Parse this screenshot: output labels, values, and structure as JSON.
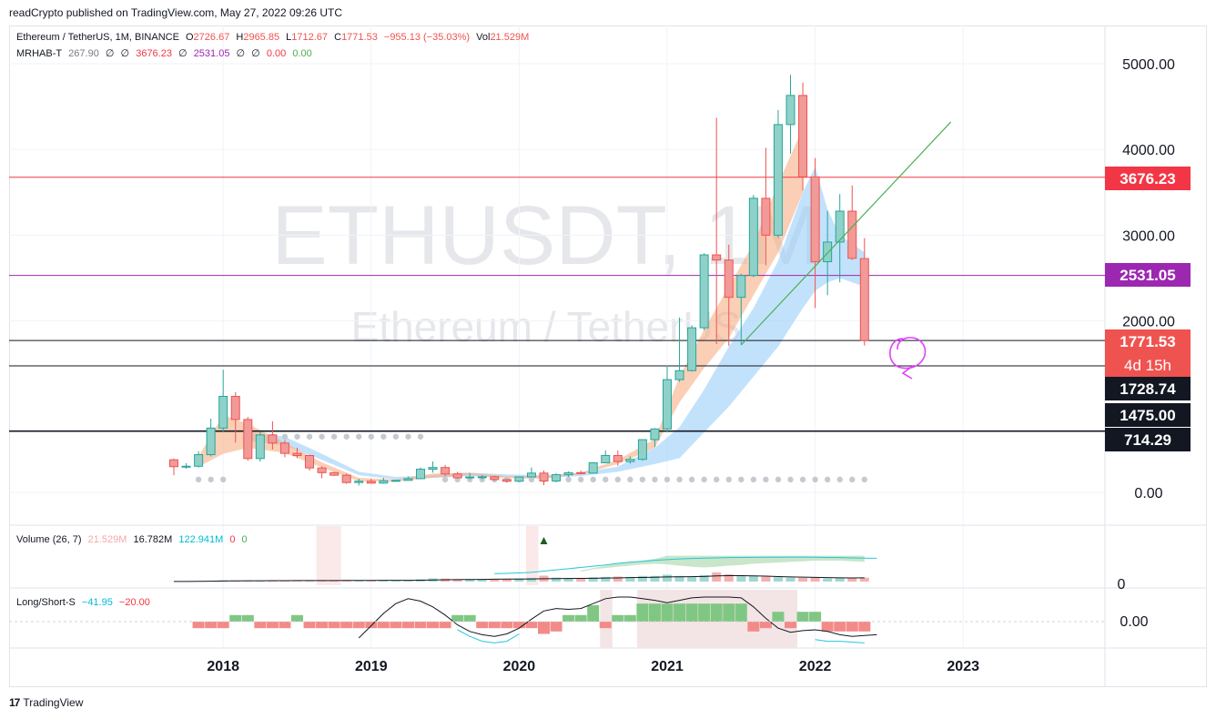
{
  "caption": "readCrypto published on TradingView.com, May 27, 2022 09:26 UTC",
  "footer": {
    "brand": "TradingView",
    "logo_icon": "tradingview-logo-icon"
  },
  "watermark": {
    "symbol": "ETHUSDT, 1M",
    "name": "Ethereum / TetherUS"
  },
  "legend_main": {
    "symbol": "Ethereum / TetherUS, 1M, BINANCE",
    "o_label": "O",
    "o": "2726.67",
    "h_label": "H",
    "h": "2965.85",
    "l_label": "L",
    "l": "1712.67",
    "c_label": "C",
    "c": "1771.53",
    "change": "−955.13 (−35.03%)",
    "vol_label": "Vol",
    "vol": "21.529M"
  },
  "legend_indicator": {
    "name": "MRHAB-T",
    "v1": "267.90",
    "v2": "∅",
    "v3": "∅",
    "v4": "3676.23",
    "v5": "∅",
    "v6": "2531.05",
    "v7": "∅",
    "v8": "∅",
    "v9": "0.00",
    "v10": "0.00"
  },
  "legend_volume": {
    "name": "Volume (26, 7)",
    "v1": "21.529M",
    "v2": "16.782M",
    "v3": "122.941M",
    "v4": "0",
    "v5": "0"
  },
  "legend_ls": {
    "name": "Long/Short-S",
    "v1": "−41.95",
    "v2": "−20.00"
  },
  "colors": {
    "up": "#26a69a",
    "down": "#ef5350",
    "up_fill": "#8fd1c8",
    "down_fill": "#f19a98",
    "red_line": "#f23645",
    "purple_line": "#9c27b0",
    "green_line": "#4caf50",
    "blue_band": "#90caf9",
    "orange_band": "#f5a77a",
    "magenta": "#e040fb"
  },
  "chart_data": {
    "type": "candlestick",
    "interval": "1M",
    "x_ticks": [
      "2018",
      "2019",
      "2020",
      "2021",
      "2022",
      "2023"
    ],
    "price_axis": {
      "ticks": [
        "5000.00",
        "4000.00",
        "3000.00",
        "2000.00",
        "0.00"
      ],
      "tick_values": [
        5000,
        4000,
        3000,
        2000,
        0
      ]
    },
    "price_badges": [
      {
        "label": "3676.23",
        "value": 3676.23,
        "color": "#f23645",
        "text_color": "#ffffff"
      },
      {
        "label": "2531.05",
        "value": 2531.05,
        "color": "#9c27b0",
        "text_color": "#ffffff"
      },
      {
        "label": "1771.53",
        "sub": "4d 15h",
        "value": 1771.53,
        "color": "#ef5350",
        "text_color": "#ffffff"
      },
      {
        "label": "1728.74",
        "value": 1728.74,
        "color": "#131722",
        "text_color": "#ffffff"
      },
      {
        "label": "1475.00",
        "value": 1475.0,
        "color": "#131722",
        "text_color": "#ffffff"
      },
      {
        "label": "714.29",
        "value": 714.29,
        "color": "#131722",
        "text_color": "#ffffff"
      }
    ],
    "volume_axis": {
      "ticks": [
        "0"
      ]
    },
    "ls_axis": {
      "ticks": [
        "0.00"
      ]
    },
    "candles": [
      {
        "t": "2017-09",
        "o": 380,
        "h": 395,
        "l": 200,
        "c": 300
      },
      {
        "t": "2017-10",
        "o": 300,
        "h": 340,
        "l": 275,
        "c": 305
      },
      {
        "t": "2017-11",
        "o": 305,
        "h": 480,
        "l": 290,
        "c": 440
      },
      {
        "t": "2017-12",
        "o": 440,
        "h": 860,
        "l": 420,
        "c": 750
      },
      {
        "t": "2018-01",
        "o": 750,
        "h": 1430,
        "l": 710,
        "c": 1120
      },
      {
        "t": "2018-02",
        "o": 1120,
        "h": 1170,
        "l": 580,
        "c": 850
      },
      {
        "t": "2018-03",
        "o": 850,
        "h": 880,
        "l": 370,
        "c": 395
      },
      {
        "t": "2018-04",
        "o": 395,
        "h": 710,
        "l": 360,
        "c": 670
      },
      {
        "t": "2018-05",
        "o": 670,
        "h": 830,
        "l": 500,
        "c": 575
      },
      {
        "t": "2018-06",
        "o": 575,
        "h": 610,
        "l": 410,
        "c": 455
      },
      {
        "t": "2018-07",
        "o": 455,
        "h": 520,
        "l": 400,
        "c": 430
      },
      {
        "t": "2018-08",
        "o": 430,
        "h": 440,
        "l": 255,
        "c": 285
      },
      {
        "t": "2018-09",
        "o": 285,
        "h": 305,
        "l": 165,
        "c": 230
      },
      {
        "t": "2018-10",
        "o": 230,
        "h": 240,
        "l": 190,
        "c": 200
      },
      {
        "t": "2018-11",
        "o": 200,
        "h": 220,
        "l": 100,
        "c": 115
      },
      {
        "t": "2018-12",
        "o": 115,
        "h": 160,
        "l": 80,
        "c": 130
      },
      {
        "t": "2019-01",
        "o": 130,
        "h": 160,
        "l": 100,
        "c": 108
      },
      {
        "t": "2019-02",
        "o": 108,
        "h": 170,
        "l": 100,
        "c": 135
      },
      {
        "t": "2019-03",
        "o": 135,
        "h": 145,
        "l": 125,
        "c": 140
      },
      {
        "t": "2019-04",
        "o": 140,
        "h": 185,
        "l": 135,
        "c": 160
      },
      {
        "t": "2019-05",
        "o": 160,
        "h": 290,
        "l": 155,
        "c": 270
      },
      {
        "t": "2019-06",
        "o": 270,
        "h": 360,
        "l": 230,
        "c": 290
      },
      {
        "t": "2019-07",
        "o": 290,
        "h": 320,
        "l": 190,
        "c": 215
      },
      {
        "t": "2019-08",
        "o": 215,
        "h": 240,
        "l": 160,
        "c": 170
      },
      {
        "t": "2019-09",
        "o": 170,
        "h": 225,
        "l": 155,
        "c": 180
      },
      {
        "t": "2019-10",
        "o": 180,
        "h": 200,
        "l": 155,
        "c": 182
      },
      {
        "t": "2019-11",
        "o": 182,
        "h": 195,
        "l": 135,
        "c": 150
      },
      {
        "t": "2019-12",
        "o": 150,
        "h": 155,
        "l": 115,
        "c": 130
      },
      {
        "t": "2020-01",
        "o": 130,
        "h": 185,
        "l": 125,
        "c": 180
      },
      {
        "t": "2020-02",
        "o": 180,
        "h": 290,
        "l": 175,
        "c": 225
      },
      {
        "t": "2020-03",
        "o": 225,
        "h": 255,
        "l": 85,
        "c": 133
      },
      {
        "t": "2020-04",
        "o": 133,
        "h": 225,
        "l": 130,
        "c": 206
      },
      {
        "t": "2020-05",
        "o": 206,
        "h": 245,
        "l": 180,
        "c": 230
      },
      {
        "t": "2020-06",
        "o": 230,
        "h": 255,
        "l": 215,
        "c": 225
      },
      {
        "t": "2020-07",
        "o": 225,
        "h": 350,
        "l": 220,
        "c": 345
      },
      {
        "t": "2020-08",
        "o": 345,
        "h": 490,
        "l": 340,
        "c": 430
      },
      {
        "t": "2020-09",
        "o": 430,
        "h": 490,
        "l": 310,
        "c": 360
      },
      {
        "t": "2020-10",
        "o": 360,
        "h": 420,
        "l": 335,
        "c": 385
      },
      {
        "t": "2020-11",
        "o": 385,
        "h": 620,
        "l": 370,
        "c": 615
      },
      {
        "t": "2020-12",
        "o": 615,
        "h": 750,
        "l": 530,
        "c": 740
      },
      {
        "t": "2021-01",
        "o": 740,
        "h": 1480,
        "l": 710,
        "c": 1315
      },
      {
        "t": "2021-02",
        "o": 1315,
        "h": 2040,
        "l": 1290,
        "c": 1420
      },
      {
        "t": "2021-03",
        "o": 1420,
        "h": 1950,
        "l": 1410,
        "c": 1920
      },
      {
        "t": "2021-04",
        "o": 1920,
        "h": 2790,
        "l": 1890,
        "c": 2770
      },
      {
        "t": "2021-05",
        "o": 2770,
        "h": 4370,
        "l": 1730,
        "c": 2710
      },
      {
        "t": "2021-06",
        "o": 2710,
        "h": 2890,
        "l": 1710,
        "c": 2275
      },
      {
        "t": "2021-07",
        "o": 2275,
        "h": 2550,
        "l": 1720,
        "c": 2530
      },
      {
        "t": "2021-08",
        "o": 2530,
        "h": 3470,
        "l": 2510,
        "c": 3430
      },
      {
        "t": "2021-09",
        "o": 3430,
        "h": 4020,
        "l": 2650,
        "c": 3000
      },
      {
        "t": "2021-10",
        "o": 3000,
        "h": 4460,
        "l": 2970,
        "c": 4290
      },
      {
        "t": "2021-11",
        "o": 4290,
        "h": 4870,
        "l": 3950,
        "c": 4630
      },
      {
        "t": "2021-12",
        "o": 4630,
        "h": 4780,
        "l": 3520,
        "c": 3680
      },
      {
        "t": "2022-01",
        "o": 3680,
        "h": 3900,
        "l": 2150,
        "c": 2690
      },
      {
        "t": "2022-02",
        "o": 2690,
        "h": 3285,
        "l": 2300,
        "c": 2920
      },
      {
        "t": "2022-03",
        "o": 2920,
        "h": 3480,
        "l": 2450,
        "c": 3280
      },
      {
        "t": "2022-04",
        "o": 3280,
        "h": 3580,
        "l": 2710,
        "c": 2730
      },
      {
        "t": "2022-05",
        "o": 2726.67,
        "h": 2965.85,
        "l": 1712.67,
        "c": 1771.53
      }
    ],
    "horizontal_levels": [
      {
        "value": 3676.23,
        "color": "#f23645"
      },
      {
        "value": 2531.05,
        "color": "#9c27b0"
      },
      {
        "value": 1771.53,
        "color": "#131722"
      },
      {
        "value": 1475.0,
        "color": "#131722"
      },
      {
        "value": 714.29,
        "color": "#131722"
      }
    ],
    "trendline": {
      "from": {
        "t": "2021-07",
        "v": 1720
      },
      "to": {
        "t": "2022-12",
        "v": 4320
      }
    },
    "orange_band": {
      "t": [
        "2017-11",
        "2018-01",
        "2018-03",
        "2018-06",
        "2018-09",
        "2018-12",
        "2019-03",
        "2019-06",
        "2019-09",
        "2019-12",
        "2020-03",
        "2020-06",
        "2020-09",
        "2020-12",
        "2021-02",
        "2021-04",
        "2021-06",
        "2021-08",
        "2021-10",
        "2021-12"
      ],
      "upper": [
        420,
        900,
        800,
        580,
        350,
        170,
        150,
        220,
        230,
        190,
        190,
        230,
        380,
        620,
        1350,
        1900,
        2400,
        2900,
        3600,
        4250
      ],
      "lower": [
        300,
        450,
        520,
        460,
        290,
        130,
        125,
        170,
        200,
        165,
        160,
        210,
        330,
        520,
        1050,
        1450,
        1800,
        2300,
        2800,
        3500
      ]
    },
    "blue_band": {
      "t": [
        "2018-03",
        "2018-06",
        "2018-09",
        "2018-12",
        "2019-03",
        "2019-06",
        "2019-09",
        "2019-12",
        "2020-03",
        "2020-06",
        "2020-09",
        "2020-12",
        "2021-02",
        "2021-04",
        "2021-06",
        "2021-08",
        "2021-10",
        "2021-12",
        "2022-01",
        "2022-02",
        "2022-03",
        "2022-04",
        "2022-05"
      ],
      "upper": [
        700,
        650,
        450,
        240,
        180,
        200,
        230,
        210,
        200,
        230,
        300,
        520,
        760,
        1200,
        1700,
        2150,
        2700,
        3500,
        3800,
        3300,
        3000,
        2900,
        2800
      ],
      "lower": [
        600,
        550,
        380,
        200,
        150,
        170,
        190,
        180,
        170,
        190,
        240,
        330,
        400,
        700,
        1000,
        1350,
        1700,
        2150,
        2350,
        2450,
        2500,
        2450,
        2400
      ]
    },
    "gray_dots_upper": {
      "from": "2018-05",
      "to": "2019-05",
      "v": 650
    },
    "gray_dots_lower": {
      "from": "2019-07",
      "to": "2022-05",
      "v": 150
    },
    "gray_dots_left": {
      "from": "2017-11",
      "to": "2018-01",
      "v": 150
    },
    "volume": [
      0.2,
      0.2,
      0.3,
      0.5,
      1.0,
      0.8,
      0.6,
      0.6,
      0.5,
      0.5,
      0.5,
      0.6,
      0.7,
      0.7,
      0.8,
      0.8,
      0.9,
      0.9,
      0.9,
      1.2,
      1.8,
      2.6,
      2.4,
      2.0,
      2.0,
      2.0,
      2.1,
      2.2,
      2.6,
      3.0,
      4.8,
      3.2,
      3.0,
      3.0,
      3.5,
      3.8,
      4.1,
      3.8,
      4.6,
      4.6,
      5.6,
      4.6,
      4.0,
      5.2,
      7.5,
      6.0,
      5.0,
      4.4,
      4.0,
      3.6,
      3.2,
      3.0,
      3.4,
      2.6,
      2.8,
      2.6,
      3.2
    ],
    "volume_ma": [
      0.1,
      0.1,
      0.2,
      0.3,
      0.5,
      0.6,
      0.65,
      0.65,
      0.7,
      0.7,
      0.8,
      0.8,
      0.8,
      0.8,
      0.9,
      0.9,
      0.9,
      1.0,
      1.0,
      1.0,
      1.1,
      1.3,
      1.5,
      1.6,
      1.7,
      1.8,
      1.9,
      2.0,
      2.0,
      2.1,
      2.3,
      2.4,
      2.5,
      2.6,
      2.7,
      2.9,
      3.0,
      3.2,
      3.3,
      3.5,
      3.8,
      3.9,
      4.0,
      4.2,
      4.6,
      4.8,
      4.8,
      4.6,
      4.4,
      4.1,
      3.8,
      3.6,
      3.4,
      3.2,
      3.1,
      3.0,
      3.1
    ],
    "volume_signal_line": {
      "from": "2019-11",
      "values": [
        6.5,
        6.7,
        7.0,
        7.5,
        8.5,
        9.5,
        10.5,
        11.5,
        12.5,
        13.5,
        14.8,
        15.8,
        16.5,
        17.3,
        17.9,
        18.4,
        18.8,
        19.1,
        19.3,
        19.5,
        19.6,
        19.7,
        19.8,
        19.8,
        19.9,
        19.9,
        19.8,
        19.6,
        19.5,
        19.3,
        19.1,
        19.0
      ]
    },
    "volume_cloud": {
      "from": "2020-06",
      "upper": [
        9,
        11,
        13,
        14.5,
        16,
        17,
        18.5,
        21,
        21,
        21,
        21,
        21,
        21,
        21,
        21,
        21,
        21,
        21,
        21,
        21,
        21,
        21,
        21,
        21
      ],
      "lower": [
        8,
        10,
        11,
        12,
        13,
        14,
        14.5,
        14,
        13,
        12,
        11.5,
        12,
        13,
        13.5,
        14.5,
        15,
        15.5,
        16,
        16.5,
        17,
        17,
        17,
        16.5,
        16
      ]
    },
    "ls_bars": [
      0,
      0,
      -0.8,
      -0.8,
      -0.8,
      0.8,
      0.8,
      -0.8,
      -0.8,
      -0.8,
      0.8,
      -0.8,
      -0.8,
      -0.8,
      -0.8,
      -0.8,
      -0.8,
      -0.8,
      -0.8,
      -0.8,
      -0.8,
      -0.8,
      -0.8,
      0.8,
      0.8,
      -0.8,
      -0.8,
      -0.8,
      -0.8,
      -0.8,
      -1.5,
      -1.2,
      0.8,
      0.8,
      2.0,
      -0.8,
      0.8,
      0.8,
      2.2,
      2.2,
      2.2,
      2.2,
      2.2,
      2.2,
      2.2,
      2.2,
      2.2,
      -1.2,
      -0.8,
      1.2,
      -0.8,
      1.2,
      1.2,
      -1.2,
      -1.2,
      -1.2,
      -1.2
    ],
    "ls_line1": {
      "from": "2018-12",
      "values": [
        -2.0,
        -0.5,
        1.0,
        2.2,
        2.8,
        2.5,
        1.8,
        0.8,
        -0.4,
        -1.2,
        -1.6,
        -1.8,
        -1.5,
        -0.8,
        0.3,
        1.3,
        1.6,
        1.5,
        1.6,
        2.2,
        2.8,
        3.0,
        3.0,
        2.8,
        2.6,
        2.3,
        2.6,
        2.9,
        3.0,
        3.0,
        3.0,
        2.9,
        1.8,
        0.4,
        -0.8,
        -1.3,
        -1.1,
        -1.0,
        -1.2,
        -1.6,
        -1.8,
        -1.7,
        -1.6
      ]
    },
    "ls_line2": {
      "from": "2019-08",
      "values": [
        -1.0,
        -1.8,
        -2.4,
        -2.6,
        -2.4,
        -1.5
      ]
    },
    "ls_line3": {
      "from": "2022-01",
      "values": [
        -2.2,
        -2.4,
        -2.4,
        -2.5,
        -2.6
      ]
    },
    "signals": [
      {
        "t": "2020-02",
        "type": "sell",
        "color": "#f23645"
      },
      {
        "t": "2020-03",
        "type": "buy",
        "color": "#1b5e20"
      }
    ]
  }
}
